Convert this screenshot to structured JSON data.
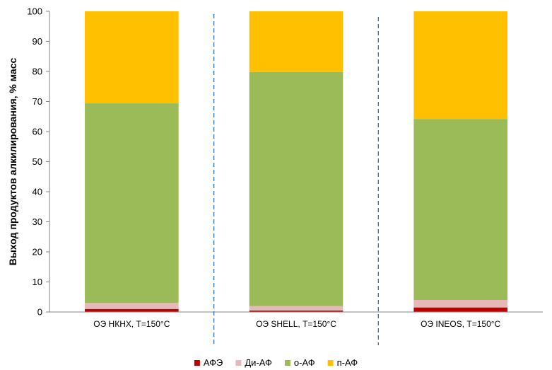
{
  "chart_data": {
    "type": "bar",
    "stacked": true,
    "categories": [
      "ОЭ НКНХ, Т=150°С",
      "ОЭ SHELL, Т=150°С",
      "ОЭ INEOS, Т=150°С"
    ],
    "series": [
      {
        "name": "АФЭ",
        "color": "#c00000",
        "values": [
          1.0,
          0.5,
          1.5
        ]
      },
      {
        "name": "Ди-АФ",
        "color": "#e6b8b7",
        "values": [
          2.0,
          1.5,
          2.5
        ]
      },
      {
        "name": "о-АФ",
        "color": "#9bbb59",
        "values": [
          66.4,
          77.8,
          60.2
        ]
      },
      {
        "name": "п-АФ",
        "color": "#ffc000",
        "values": [
          30.6,
          20.2,
          35.8
        ]
      }
    ],
    "ylabel": "Выход продуктов алкилирования, % масс",
    "xlabel": "",
    "ylim": [
      0,
      100
    ],
    "yticks": [
      "0",
      "10",
      "20",
      "30",
      "40",
      "50",
      "60",
      "70",
      "80",
      "90",
      "100"
    ],
    "grid": false,
    "legend": "bottom",
    "separators": "dashed vertical lines between categories"
  }
}
